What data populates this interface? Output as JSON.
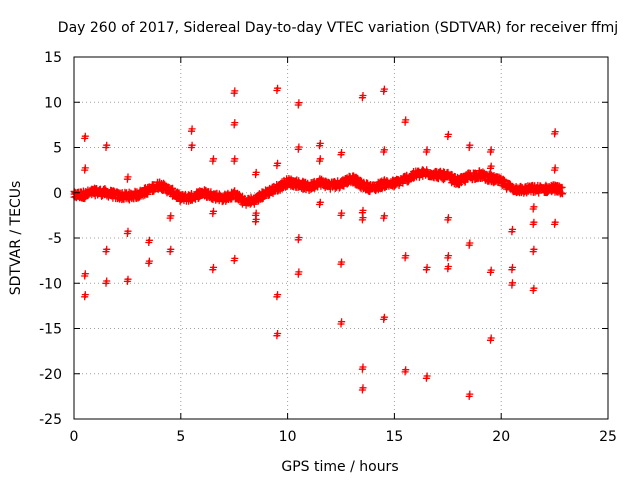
{
  "chart_data": {
    "type": "scatter",
    "title": "Day 260 of 2017, Sidereal Day-to-day VTEC variation (SDTVAR) for receiver ffmj",
    "xlabel": "GPS time / hours",
    "ylabel": "SDTVAR / TECUs",
    "xlim": [
      0,
      25
    ],
    "ylim": [
      -25,
      15
    ],
    "xticks": [
      "0",
      "5",
      "10",
      "15",
      "20",
      "25"
    ],
    "yticks": [
      "15",
      "10",
      "5",
      "0",
      "-5",
      "-10",
      "-15",
      "-20",
      "-25"
    ],
    "grid": true,
    "legend": "none",
    "marker": "+",
    "color": "#ff0000",
    "band": {
      "x": [
        0,
        0.5,
        1.0,
        1.5,
        2.0,
        2.5,
        3.0,
        3.5,
        4.0,
        4.5,
        5.0,
        5.5,
        6.0,
        6.5,
        7.0,
        7.5,
        8.0,
        8.5,
        9.0,
        9.5,
        10.0,
        10.5,
        11.0,
        11.5,
        12.0,
        12.5,
        13.0,
        13.5,
        14.0,
        14.5,
        15.0,
        15.5,
        16.0,
        16.5,
        17.0,
        17.5,
        18.0,
        18.5,
        19.0,
        19.5,
        20.0,
        20.5,
        21.0,
        21.5,
        22.0,
        22.5,
        22.9
      ],
      "y": [
        -0.3,
        -0.2,
        0.1,
        0.0,
        -0.3,
        -0.4,
        -0.2,
        0.3,
        0.9,
        0.2,
        -0.6,
        -0.5,
        0.0,
        -0.3,
        -0.6,
        -0.2,
        -1.0,
        -0.8,
        0.0,
        0.5,
        1.2,
        1.0,
        0.6,
        1.2,
        0.8,
        1.0,
        1.6,
        0.8,
        0.5,
        1.0,
        1.0,
        1.5,
        2.0,
        2.2,
        2.0,
        1.8,
        1.2,
        1.8,
        2.0,
        1.6,
        1.2,
        0.5,
        0.3,
        0.4,
        0.4,
        0.5,
        0.2
      ],
      "spread": 0.9
    },
    "outliers": {
      "x": [
        0.5,
        0.5,
        0.5,
        0.5,
        1.5,
        1.5,
        1.5,
        2.5,
        2.5,
        2.5,
        3.5,
        3.5,
        4.5,
        4.5,
        5.5,
        5.5,
        6.5,
        6.5,
        6.5,
        7.5,
        7.5,
        7.5,
        7.5,
        8.5,
        8.5,
        8.5,
        9.5,
        9.5,
        9.5,
        9.5,
        10.5,
        10.5,
        10.5,
        10.5,
        11.5,
        11.5,
        11.5,
        12.5,
        12.5,
        12.5,
        12.5,
        13.5,
        13.5,
        13.5,
        13.5,
        13.5,
        14.5,
        14.5,
        14.5,
        14.5,
        15.5,
        15.5,
        15.5,
        16.5,
        16.5,
        16.5,
        17.5,
        17.5,
        17.5,
        17.5,
        18.5,
        18.5,
        18.5,
        19.5,
        19.5,
        19.5,
        19.5,
        20.5,
        20.5,
        20.5,
        21.5,
        21.5,
        21.5,
        21.5,
        22.5,
        22.5,
        22.5
      ],
      "y": [
        6.0,
        2.5,
        -9.2,
        -11.5,
        5.0,
        -6.5,
        -10.0,
        1.5,
        -4.5,
        -9.8,
        -5.5,
        -7.8,
        -2.8,
        -6.5,
        6.8,
        5.0,
        3.5,
        -2.3,
        -8.5,
        11.0,
        7.5,
        3.5,
        -7.5,
        2.0,
        -2.5,
        -3.2,
        11.3,
        3.0,
        -11.5,
        -15.8,
        9.7,
        4.8,
        -5.2,
        -9.0,
        5.2,
        3.5,
        -1.3,
        4.2,
        -2.5,
        -7.9,
        -14.5,
        10.5,
        -2.2,
        -3.0,
        -19.5,
        -21.8,
        11.2,
        4.5,
        -2.8,
        -14.0,
        7.8,
        -7.2,
        -19.8,
        4.5,
        -8.5,
        -20.5,
        6.2,
        -3.0,
        -7.2,
        -8.4,
        5.0,
        -5.8,
        -22.5,
        4.5,
        -8.8,
        -16.3,
        2.7,
        -4.3,
        -8.5,
        -10.2,
        -1.8,
        -3.5,
        -6.5,
        -10.8,
        6.5,
        2.5,
        -3.5
      ]
    }
  }
}
